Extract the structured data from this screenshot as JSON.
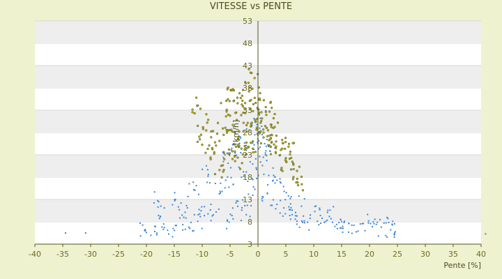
{
  "chart_data": {
    "type": "scatter",
    "title": "VITESSE vs PENTE",
    "xlabel": "Pente [%]",
    "ylabel": "[km/h]",
    "xlim": [
      -40,
      40
    ],
    "ylim": [
      3,
      53
    ],
    "xticks": [
      "-40",
      "-35",
      "-30",
      "-25",
      "-20",
      "-15",
      "-10",
      "-5",
      "0",
      "5",
      "10",
      "15",
      "20",
      "25",
      "30",
      "35",
      "40"
    ],
    "yticks": [
      "3",
      "8",
      "13",
      "18",
      "23",
      "28",
      "33",
      "38",
      "43",
      "48",
      "53"
    ],
    "grid": "horizontal alternating bands",
    "colors": {
      "series_a": "#3a86d6",
      "series_b": "#b8b020",
      "series_b_edge": "#4d4d10",
      "axis": "#55551a",
      "band": "#eeeeee"
    },
    "series": [
      {
        "color": "#3a86d6",
        "x": [
          -34.5,
          -30.9,
          -20.2,
          -18.5,
          -17.8,
          -16.9,
          -15.2,
          -14.8,
          -13.6,
          -12.4,
          -11.5,
          -10.8,
          -9.6,
          -8.9,
          -7.5,
          -6.8,
          -6.2,
          -5.5,
          -4.8,
          -4.1,
          -3.6,
          -3.1,
          -2.6,
          -2.1,
          -1.6,
          -1.2,
          -0.8,
          -0.4,
          0.0,
          0.4,
          0.8,
          1.2,
          1.7,
          2.2,
          2.8,
          3.4,
          4.1,
          4.9,
          5.8,
          6.7,
          7.8,
          8.9,
          10.2,
          11.5,
          12.8,
          14.1,
          15.5,
          17.2,
          18.9,
          20.5,
          22.1,
          23.8,
          24.1,
          40.8
        ],
        "y": [
          5.5,
          5.5,
          6.0,
          7.0,
          12.5,
          7.5,
          6.5,
          13.0,
          9.5,
          6.8,
          15.2,
          8.1,
          11.4,
          18.6,
          10.2,
          14.8,
          21.5,
          8.4,
          17.9,
          23.4,
          12.6,
          26.8,
          19.2,
          9.6,
          24.7,
          29.3,
          15.8,
          22.1,
          27.4,
          31.2,
          20.6,
          25.5,
          14.3,
          23.8,
          18.4,
          11.9,
          16.7,
          9.8,
          13.2,
          8.6,
          11.5,
          7.9,
          10.3,
          8.8,
          9.2,
          7.4,
          8.1,
          7.2,
          7.6,
          6.9,
          6.8,
          6.2,
          7.3,
          5.3
        ]
      },
      {
        "color": "#b8b020",
        "x": [
          -10.9,
          -10.2,
          -9.1,
          -8.5,
          -7.7,
          -6.9,
          -6.3,
          -5.6,
          -5.2,
          -4.9,
          -4.5,
          -4.1,
          -3.7,
          -3.4,
          -3.0,
          -2.7,
          -2.3,
          -2.0,
          -1.6,
          -1.3,
          -0.9,
          -0.6,
          -0.2,
          0.2,
          0.6,
          1.0,
          1.4,
          1.8,
          2.3,
          2.8,
          3.3,
          3.9,
          4.5,
          5.1,
          5.8,
          6.4,
          7.2
        ],
        "y": [
          34.0,
          27.5,
          30.2,
          22.4,
          25.8,
          19.6,
          28.9,
          33.1,
          24.2,
          37.5,
          29.7,
          21.6,
          35.8,
          26.4,
          31.9,
          23.1,
          34.6,
          28.2,
          37.2,
          25.7,
          32.8,
          40.2,
          29.1,
          35.4,
          30.6,
          26.9,
          33.7,
          28.5,
          24.8,
          31.2,
          27.3,
          22.9,
          25.6,
          21.4,
          23.7,
          19.8,
          16.2
        ]
      }
    ]
  }
}
